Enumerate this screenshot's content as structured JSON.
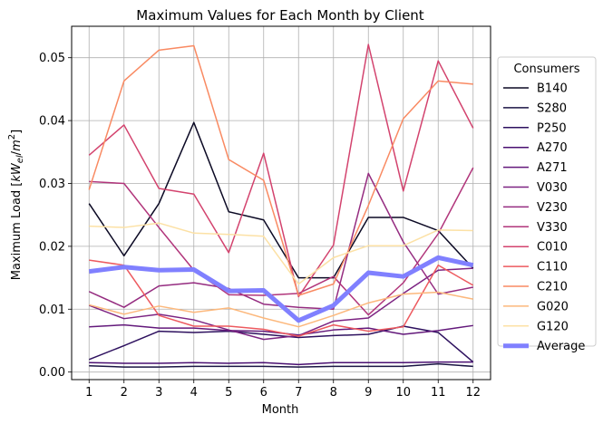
{
  "chart_data": {
    "type": "line",
    "title": "Maximum Values for Each Month by Client",
    "xlabel": "Month",
    "ylabel_prefix": "Maximum Load [",
    "ylabel_var": "kW",
    "ylabel_sub": "el",
    "ylabel_mid": "/",
    "ylabel_unit": "m",
    "ylabel_sup": "2",
    "ylabel_suffix": "]",
    "x": [
      1,
      2,
      3,
      4,
      5,
      6,
      7,
      8,
      9,
      10,
      11,
      12
    ],
    "x_tick_labels": [
      "1",
      "2",
      "3",
      "4",
      "5",
      "6",
      "7",
      "8",
      "9",
      "10",
      "11",
      "12"
    ],
    "xlim": [
      0.5,
      12.5
    ],
    "ylim": [
      -0.0012,
      0.055
    ],
    "y_ticks": [
      0.0,
      0.01,
      0.02,
      0.03,
      0.04,
      0.05
    ],
    "y_tick_labels": [
      "0.00",
      "0.01",
      "0.02",
      "0.03",
      "0.04",
      "0.05"
    ],
    "grid": true,
    "legend": {
      "title": "Consumers",
      "placement": "outside-right"
    },
    "series": [
      {
        "name": "B140",
        "color": "#0b0924",
        "width": 1.5,
        "values": [
          0.0268,
          0.0185,
          0.0268,
          0.0397,
          0.0255,
          0.0242,
          0.015,
          0.015,
          0.0246,
          0.0246,
          0.0225,
          0.0165
        ]
      },
      {
        "name": "S280",
        "color": "#1b1544",
        "width": 1.5,
        "values": [
          0.001,
          0.0008,
          0.0008,
          0.0009,
          0.0009,
          0.0009,
          0.0008,
          0.0009,
          0.0009,
          0.0009,
          0.0013,
          0.0009
        ]
      },
      {
        "name": "P250",
        "color": "#2e115f",
        "width": 1.5,
        "values": [
          0.002,
          0.0042,
          0.0065,
          0.0063,
          0.0065,
          0.006,
          0.0055,
          0.0058,
          0.006,
          0.0073,
          0.0063,
          0.0016
        ]
      },
      {
        "name": "A270",
        "color": "#4a1072",
        "width": 1.5,
        "values": [
          0.0015,
          0.0014,
          0.0014,
          0.0015,
          0.0014,
          0.0015,
          0.0012,
          0.0015,
          0.0015,
          0.0015,
          0.0016,
          0.0016
        ]
      },
      {
        "name": "A271",
        "color": "#63197b",
        "width": 1.5,
        "values": [
          0.0072,
          0.0075,
          0.007,
          0.007,
          0.0066,
          0.0065,
          0.0059,
          0.0067,
          0.007,
          0.006,
          0.0066,
          0.0074
        ]
      },
      {
        "name": "V030",
        "color": "#7c2382",
        "width": 1.5,
        "values": [
          0.0106,
          0.0085,
          0.0092,
          0.0083,
          0.0067,
          0.0052,
          0.0058,
          0.0081,
          0.0086,
          0.0125,
          0.0162,
          0.0165
        ]
      },
      {
        "name": "V230",
        "color": "#952c80",
        "width": 1.5,
        "values": [
          0.0128,
          0.0103,
          0.0137,
          0.0142,
          0.0133,
          0.0108,
          0.0103,
          0.01,
          0.0316,
          0.0207,
          0.0124,
          0.0135
        ]
      },
      {
        "name": "V330",
        "color": "#b1357b",
        "width": 1.5,
        "values": [
          0.0303,
          0.03,
          0.023,
          0.0162,
          0.0123,
          0.0122,
          0.0125,
          0.0152,
          0.0091,
          0.0142,
          0.022,
          0.0325
        ]
      },
      {
        "name": "C010",
        "color": "#d3436e",
        "width": 1.5,
        "values": [
          0.0345,
          0.0393,
          0.0292,
          0.0283,
          0.019,
          0.0348,
          0.012,
          0.0202,
          0.0521,
          0.0288,
          0.0495,
          0.0388
        ]
      },
      {
        "name": "C110",
        "color": "#ed5a5f",
        "width": 1.5,
        "values": [
          0.0178,
          0.017,
          0.009,
          0.0073,
          0.0073,
          0.0068,
          0.0057,
          0.0075,
          0.0065,
          0.0072,
          0.017,
          0.0138
        ]
      },
      {
        "name": "C210",
        "color": "#f98a62",
        "width": 1.5,
        "values": [
          0.029,
          0.0463,
          0.0512,
          0.0519,
          0.0338,
          0.0305,
          0.0122,
          0.014,
          0.0265,
          0.0403,
          0.0463,
          0.0458
        ]
      },
      {
        "name": "G020",
        "color": "#fcb87c",
        "width": 1.5,
        "values": [
          0.0107,
          0.0092,
          0.0105,
          0.0095,
          0.0102,
          0.0086,
          0.0072,
          0.009,
          0.011,
          0.0124,
          0.0127,
          0.0116
        ]
      },
      {
        "name": "G120",
        "color": "#fce1a5",
        "width": 1.5,
        "values": [
          0.0232,
          0.023,
          0.0237,
          0.0221,
          0.0219,
          0.0216,
          0.014,
          0.0182,
          0.0201,
          0.0201,
          0.0226,
          0.0225
        ]
      },
      {
        "name": "Average",
        "color": "#8080ff",
        "width": 5,
        "values": [
          0.016,
          0.0167,
          0.0162,
          0.0163,
          0.0129,
          0.013,
          0.0082,
          0.0106,
          0.0158,
          0.0152,
          0.0182,
          0.017
        ]
      }
    ]
  }
}
